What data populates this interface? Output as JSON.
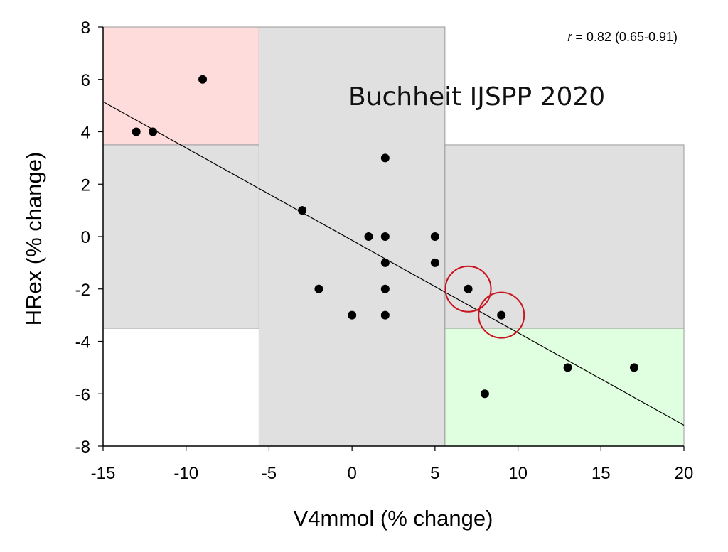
{
  "chart_data": {
    "type": "scatter",
    "title": "",
    "xlabel": "V4mmol (% change)",
    "ylabel": "HRex (% change)",
    "xlim": [
      -15,
      20
    ],
    "ylim": [
      -8,
      8
    ],
    "xticks": [
      -15,
      -10,
      -5,
      0,
      5,
      10,
      15,
      20
    ],
    "yticks": [
      -8,
      -6,
      -4,
      -2,
      0,
      2,
      4,
      6,
      8
    ],
    "grid": false,
    "points": [
      {
        "x": -13,
        "y": 4
      },
      {
        "x": -12,
        "y": 4
      },
      {
        "x": -9,
        "y": 6
      },
      {
        "x": -3,
        "y": 1
      },
      {
        "x": -2,
        "y": -2
      },
      {
        "x": 0,
        "y": -3
      },
      {
        "x": 1,
        "y": 0
      },
      {
        "x": 2,
        "y": 3
      },
      {
        "x": 2,
        "y": 0
      },
      {
        "x": 2,
        "y": -1
      },
      {
        "x": 2,
        "y": -2
      },
      {
        "x": 2,
        "y": -3
      },
      {
        "x": 5,
        "y": 0
      },
      {
        "x": 5,
        "y": -1
      },
      {
        "x": 7,
        "y": -2
      },
      {
        "x": 8,
        "y": -6
      },
      {
        "x": 9,
        "y": -3
      },
      {
        "x": 13,
        "y": -5
      },
      {
        "x": 17,
        "y": -5
      }
    ],
    "highlighted_points": [
      {
        "x": 7,
        "y": -2
      },
      {
        "x": 9,
        "y": -3
      }
    ],
    "regression_line": {
      "x1": -15,
      "y1": 5.15,
      "x2": 20,
      "y2": -7.2
    },
    "regions": [
      {
        "name": "red",
        "x": [
          -15,
          -5.6
        ],
        "y": [
          3.5,
          8
        ],
        "color": "#ffdcdc"
      },
      {
        "name": "gray-left",
        "x": [
          -15,
          -5.6
        ],
        "y": [
          -3.5,
          3.5
        ],
        "color": "#e0e0e0"
      },
      {
        "name": "gray-center",
        "x": [
          -5.6,
          5.6
        ],
        "y": [
          -8,
          8
        ],
        "color": "#e0e0e0"
      },
      {
        "name": "gray-right",
        "x": [
          5.6,
          20
        ],
        "y": [
          -3.5,
          3.5
        ],
        "color": "#e0e0e0"
      },
      {
        "name": "green",
        "x": [
          5.6,
          20
        ],
        "y": [
          -8,
          -3.5
        ],
        "color": "#e0ffe0"
      }
    ],
    "annotations": {
      "correlation_r": "r",
      "correlation_rest": " = 0.82 (0.65-0.91)",
      "source": "Buchheit IJSPP 2020"
    },
    "colors": {
      "points": "#000000",
      "highlight": "#c8141e",
      "line": "#000000"
    }
  }
}
